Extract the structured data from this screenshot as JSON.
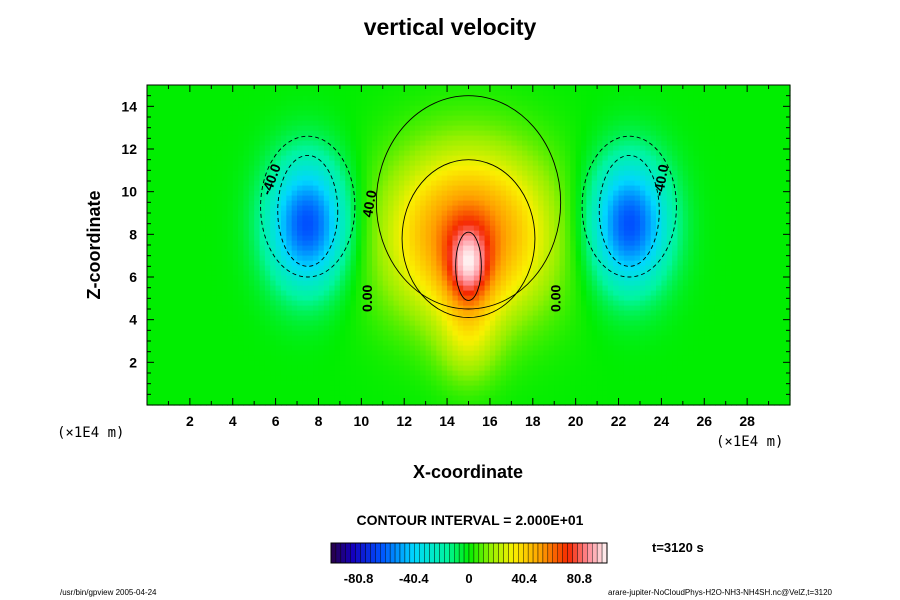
{
  "chart_data": {
    "type": "heatmap",
    "title": "vertical velocity",
    "xlabel": "X-coordinate",
    "ylabel": "Z-coordinate",
    "x_unit": "(×1E4 m)",
    "y_unit": "(×1E4 m)",
    "xlim": [
      0,
      30
    ],
    "ylim": [
      0,
      15
    ],
    "xticks": [
      2,
      4,
      6,
      8,
      10,
      12,
      14,
      16,
      18,
      20,
      22,
      24,
      26,
      28
    ],
    "yticks": [
      2,
      4,
      6,
      8,
      10,
      12,
      14
    ],
    "contour_interval": "CONTOUR INTERVAL = 2.000E+01",
    "contour_labels": [
      "-40.0",
      "0.00",
      "40.0",
      "0.00",
      "0.00",
      "-40.0"
    ],
    "colorbar": {
      "min": -101,
      "max": 101,
      "ticks": [
        "-80.8",
        "-40.4",
        "0",
        "40.4",
        "80.8"
      ],
      "tick_values": [
        -80.8,
        -40.4,
        0,
        40.4,
        80.8
      ]
    },
    "field_features": {
      "updraft": {
        "x": 15,
        "z": 6.5,
        "peak": 100
      },
      "downdrafts": [
        {
          "x": 7.5,
          "z": 8.5,
          "value": -60
        },
        {
          "x": 22.5,
          "z": 8.5,
          "value": -60
        }
      ]
    }
  },
  "time_label": "t=3120 s",
  "footer_left": "/usr/bin/gpview 2005-04-24",
  "footer_right": "arare-jupiter-NoCloudPhys-H2O-NH3-NH4SH.nc@VelZ,t=3120"
}
